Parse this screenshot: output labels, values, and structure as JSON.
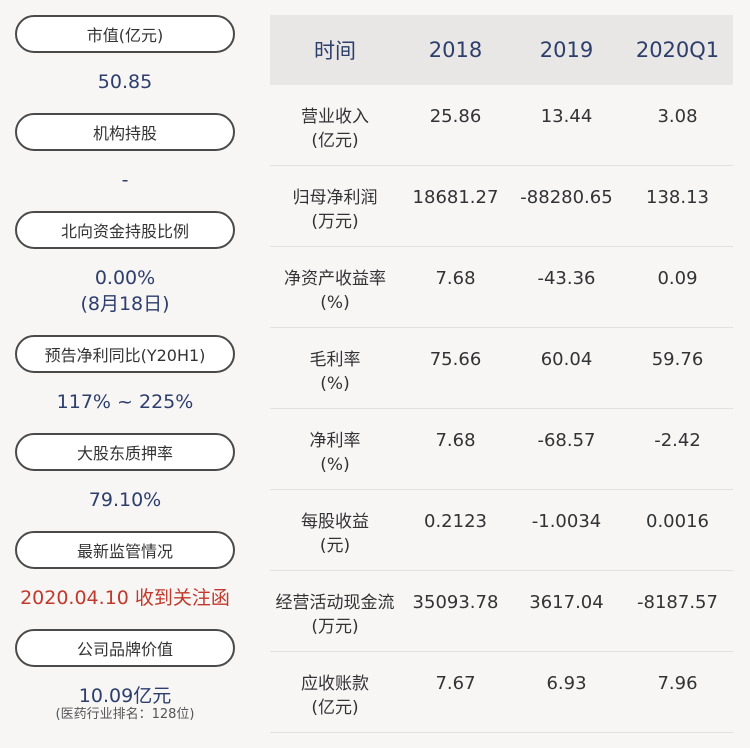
{
  "left_panel": {
    "market_cap": {
      "label": "市值(亿元)",
      "value": "50.85"
    },
    "institution": {
      "label": "机构持股",
      "value": "-"
    },
    "northbound": {
      "label": "北向资金持股比例",
      "value": "0.00%",
      "sub": "(8月18日)"
    },
    "forecast": {
      "label": "预告净利同比(Y20H1)",
      "value": "117% ~ 225%"
    },
    "pledge": {
      "label": "大股东质押率",
      "value": "79.10%"
    },
    "regulation": {
      "label": "最新监管情况",
      "value": "2020.04.10 收到关注函"
    },
    "brand": {
      "label": "公司品牌价值",
      "value": "10.09亿元",
      "sub": "(医药行业排名：128位)"
    }
  },
  "colors": {
    "accent": "#2c3e6b",
    "alert": "#c0392b",
    "header_bg": "#e9e6e6"
  },
  "table": {
    "headers": [
      "时间",
      "2018",
      "2019",
      "2020Q1"
    ],
    "rows": [
      {
        "label1": "营业收入",
        "label2": "(亿元)",
        "v": [
          "25.86",
          "13.44",
          "3.08"
        ]
      },
      {
        "label1": "归母净利润",
        "label2": "(万元)",
        "v": [
          "18681.27",
          "-88280.65",
          "138.13"
        ]
      },
      {
        "label1": "净资产收益率",
        "label2": "(%)",
        "v": [
          "7.68",
          "-43.36",
          "0.09"
        ]
      },
      {
        "label1": "毛利率",
        "label2": "(%)",
        "v": [
          "75.66",
          "60.04",
          "59.76"
        ]
      },
      {
        "label1": "净利率",
        "label2": "(%)",
        "v": [
          "7.68",
          "-68.57",
          "-2.42"
        ]
      },
      {
        "label1": "每股收益",
        "label2": "(元)",
        "v": [
          "0.2123",
          "-1.0034",
          "0.0016"
        ]
      },
      {
        "label1": "经营活动现金流",
        "label2": "(万元)",
        "v": [
          "35093.78",
          "3617.04",
          "-8187.57"
        ]
      },
      {
        "label1": "应收账款",
        "label2": "(亿元)",
        "v": [
          "7.67",
          "6.93",
          "7.96"
        ]
      }
    ]
  }
}
